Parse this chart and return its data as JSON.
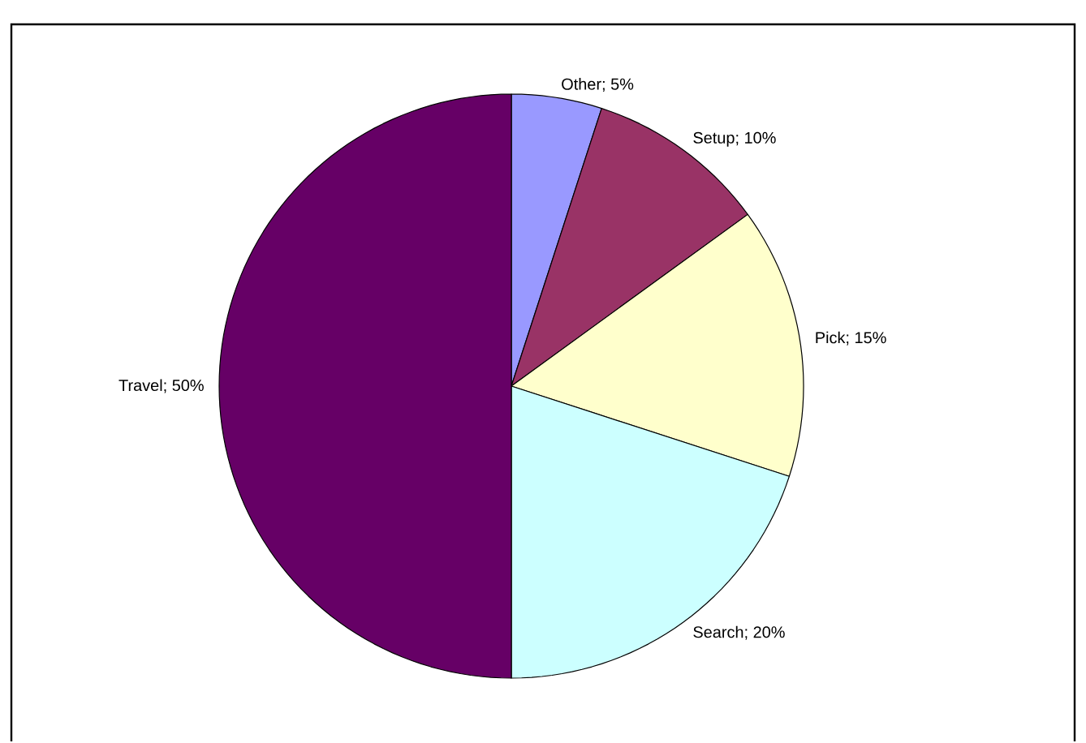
{
  "chart_data": {
    "type": "pie",
    "categories": [
      "Other",
      "Setup",
      "Pick",
      "Search",
      "Travel"
    ],
    "values": [
      5,
      10,
      15,
      20,
      50
    ],
    "value_labels": [
      "; 5%",
      "; 10%",
      "; 15%",
      "; 20%",
      "; 50%"
    ],
    "colors": [
      "#9999ff",
      "#993366",
      "#ffffcc",
      "#ccffff",
      "#660066"
    ]
  }
}
